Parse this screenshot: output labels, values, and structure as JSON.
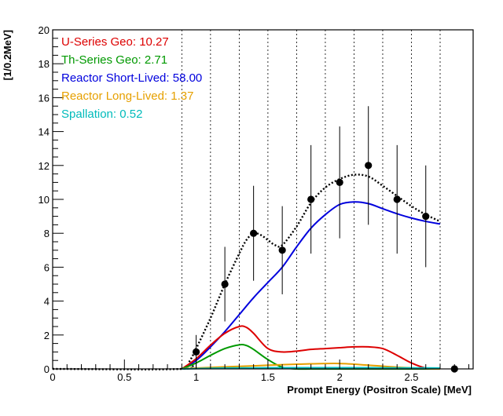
{
  "chart_data": {
    "type": "line",
    "title": "",
    "xlabel": "Prompt Energy (Positron Scale) [MeV]",
    "ylabel": "[1/0.2MeV]",
    "xlim": [
      0,
      2.93
    ],
    "ylim": [
      0,
      20
    ],
    "x_ticks": [
      0,
      0.5,
      1,
      1.5,
      2,
      2.5
    ],
    "x_tick_labels": [
      "0",
      "0.5",
      "1",
      "1.5",
      "2",
      "2.5"
    ],
    "y_ticks": [
      0,
      2,
      4,
      6,
      8,
      10,
      12,
      14,
      16,
      18,
      20
    ],
    "y_tick_labels": [
      "0",
      "2",
      "4",
      "6",
      "8",
      "10",
      "12",
      "14",
      "16",
      "18",
      "20"
    ],
    "vertical_dotted_lines": [
      0.9,
      1.1,
      1.3,
      1.5,
      1.7,
      1.9,
      2.1,
      2.3,
      2.5,
      2.7
    ],
    "legend_position": "top-left",
    "legend": [
      {
        "label": "U-Series Geo: 10.27",
        "color": "#dd0000"
      },
      {
        "label": "Th-Series Geo: 2.71",
        "color": "#009900"
      },
      {
        "label": "Reactor Short-Lived: 58.00",
        "color": "#0000dd"
      },
      {
        "label": "Reactor Long-Lived: 1.37",
        "color": "#e6a000"
      },
      {
        "label": "Spallation: 0.52",
        "color": "#00bbbb"
      }
    ],
    "data_points": [
      {
        "x": 1.0,
        "y": 1,
        "err_lo": 1.0,
        "err_hi": 1.0
      },
      {
        "x": 1.2,
        "y": 5,
        "err_lo": 2.2,
        "err_hi": 2.2
      },
      {
        "x": 1.4,
        "y": 8,
        "err_lo": 2.8,
        "err_hi": 2.8
      },
      {
        "x": 1.6,
        "y": 7,
        "err_lo": 2.6,
        "err_hi": 2.6
      },
      {
        "x": 1.8,
        "y": 10,
        "err_lo": 3.2,
        "err_hi": 3.2
      },
      {
        "x": 2.0,
        "y": 11,
        "err_lo": 3.3,
        "err_hi": 3.3
      },
      {
        "x": 2.2,
        "y": 12,
        "err_lo": 3.5,
        "err_hi": 3.5
      },
      {
        "x": 2.4,
        "y": 10,
        "err_lo": 3.2,
        "err_hi": 3.2
      },
      {
        "x": 2.6,
        "y": 9,
        "err_lo": 3.0,
        "err_hi": 3.0
      },
      {
        "x": 2.8,
        "y": 0,
        "err_lo": 0,
        "err_hi": 0
      }
    ],
    "series": [
      {
        "color": "#000000",
        "dash": "dotted",
        "x": [
          0.0,
          0.9,
          0.95,
          1.0,
          1.1,
          1.2,
          1.3,
          1.35,
          1.4,
          1.45,
          1.5,
          1.55,
          1.6,
          1.7,
          1.8,
          1.9,
          2.0,
          2.1,
          2.2,
          2.3,
          2.4,
          2.5,
          2.6,
          2.7
        ],
        "y": [
          0.0,
          0.0,
          0.4,
          1.2,
          3.0,
          5.0,
          6.8,
          7.6,
          8.0,
          7.9,
          7.6,
          7.3,
          7.3,
          8.4,
          9.8,
          10.7,
          11.2,
          11.45,
          11.35,
          10.8,
          10.2,
          9.6,
          9.1,
          8.7
        ]
      },
      {
        "color": "#0000dd",
        "dash": "solid",
        "x": [
          0.9,
          1.0,
          1.1,
          1.2,
          1.3,
          1.4,
          1.5,
          1.6,
          1.7,
          1.8,
          1.9,
          2.0,
          2.1,
          2.2,
          2.3,
          2.4,
          2.5,
          2.6,
          2.7
        ],
        "y": [
          0.0,
          0.5,
          1.3,
          2.2,
          3.2,
          4.2,
          5.1,
          6.0,
          7.2,
          8.3,
          9.1,
          9.7,
          9.85,
          9.75,
          9.45,
          9.15,
          8.9,
          8.7,
          8.55
        ]
      },
      {
        "color": "#dd0000",
        "dash": "solid",
        "x": [
          0.9,
          1.0,
          1.1,
          1.2,
          1.3,
          1.35,
          1.4,
          1.5,
          1.6,
          1.7,
          1.8,
          1.9,
          2.0,
          2.1,
          2.2,
          2.3,
          2.4,
          2.5,
          2.6,
          2.7
        ],
        "y": [
          0.0,
          0.6,
          1.4,
          2.1,
          2.5,
          2.45,
          2.1,
          1.2,
          1.0,
          1.05,
          1.15,
          1.2,
          1.25,
          1.3,
          1.3,
          1.2,
          0.8,
          0.35,
          0.05,
          0.0
        ]
      },
      {
        "color": "#009900",
        "dash": "solid",
        "x": [
          0.9,
          1.0,
          1.1,
          1.2,
          1.3,
          1.35,
          1.4,
          1.5,
          1.6,
          1.7,
          1.8,
          1.9,
          2.0,
          2.1,
          2.2,
          2.3,
          2.4,
          2.5,
          2.6,
          2.7
        ],
        "y": [
          0.0,
          0.35,
          0.8,
          1.2,
          1.42,
          1.38,
          1.15,
          0.55,
          0.1,
          0.0,
          0.0,
          0.0,
          0.0,
          0.0,
          0.0,
          0.0,
          0.0,
          0.0,
          0.0,
          0.0
        ]
      },
      {
        "color": "#e6a000",
        "dash": "solid",
        "x": [
          0.9,
          1.0,
          1.2,
          1.4,
          1.6,
          1.8,
          2.0,
          2.2,
          2.4,
          2.6,
          2.7
        ],
        "y": [
          0.0,
          0.05,
          0.12,
          0.18,
          0.25,
          0.3,
          0.32,
          0.22,
          0.1,
          0.02,
          0.0
        ]
      },
      {
        "color": "#00bbbb",
        "dash": "solid",
        "x": [
          0.9,
          1.0,
          1.2,
          1.4,
          1.6,
          1.8,
          2.0,
          2.2,
          2.4,
          2.6,
          2.7
        ],
        "y": [
          0.0,
          0.02,
          0.05,
          0.06,
          0.07,
          0.07,
          0.07,
          0.07,
          0.06,
          0.06,
          0.05
        ]
      }
    ]
  }
}
